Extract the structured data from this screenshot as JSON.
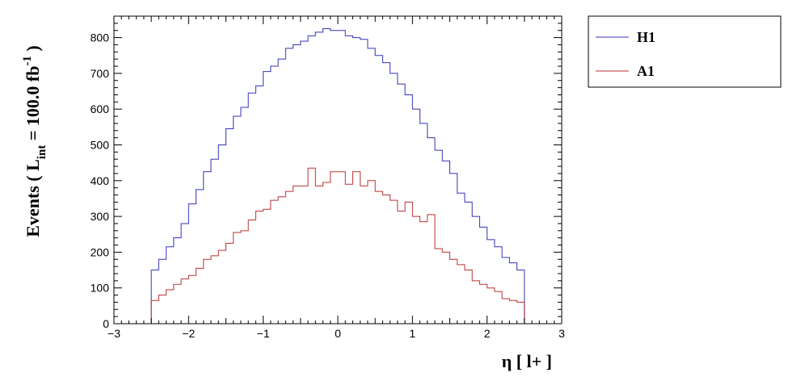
{
  "chart_data": {
    "type": "histogram",
    "xlabel": "η [ l+ ]",
    "ylabel": {
      "prefix": "Events ( L",
      "subscript": "int",
      "middle": " = 100.0 fb",
      "superscript": "-1",
      "suffix": " )"
    },
    "xlim": [
      -3,
      3
    ],
    "ylim": [
      0,
      860
    ],
    "xticks": [
      -3,
      -2,
      -1,
      0,
      1,
      2,
      3
    ],
    "xtick_labels": [
      "−3",
      "−2",
      "−1",
      "0",
      "1",
      "2",
      "3"
    ],
    "yticks": [
      0,
      100,
      200,
      300,
      400,
      500,
      600,
      700,
      800
    ],
    "ytick_labels": [
      "0",
      "100",
      "200",
      "300",
      "400",
      "500",
      "600",
      "700",
      "800"
    ],
    "bins": {
      "start": -2.5,
      "width": 0.1,
      "count": 50
    },
    "legend_position": "outside-top-right",
    "series": [
      {
        "name": "H1",
        "color": "#3333bb",
        "values": [
          150,
          180,
          215,
          240,
          280,
          335,
          375,
          425,
          460,
          500,
          545,
          580,
          605,
          645,
          665,
          705,
          720,
          740,
          770,
          780,
          790,
          805,
          815,
          825,
          820,
          820,
          805,
          800,
          795,
          770,
          750,
          730,
          700,
          670,
          640,
          600,
          560,
          520,
          485,
          455,
          420,
          365,
          340,
          300,
          270,
          235,
          215,
          185,
          170,
          150
        ]
      },
      {
        "name": "A1",
        "color": "#bb3333",
        "values": [
          65,
          80,
          95,
          110,
          125,
          135,
          155,
          180,
          190,
          205,
          225,
          255,
          260,
          290,
          315,
          320,
          345,
          355,
          370,
          385,
          385,
          435,
          385,
          395,
          425,
          425,
          390,
          425,
          385,
          400,
          370,
          360,
          345,
          315,
          340,
          300,
          285,
          305,
          210,
          200,
          180,
          165,
          150,
          120,
          110,
          100,
          90,
          70,
          65,
          60
        ]
      }
    ]
  }
}
